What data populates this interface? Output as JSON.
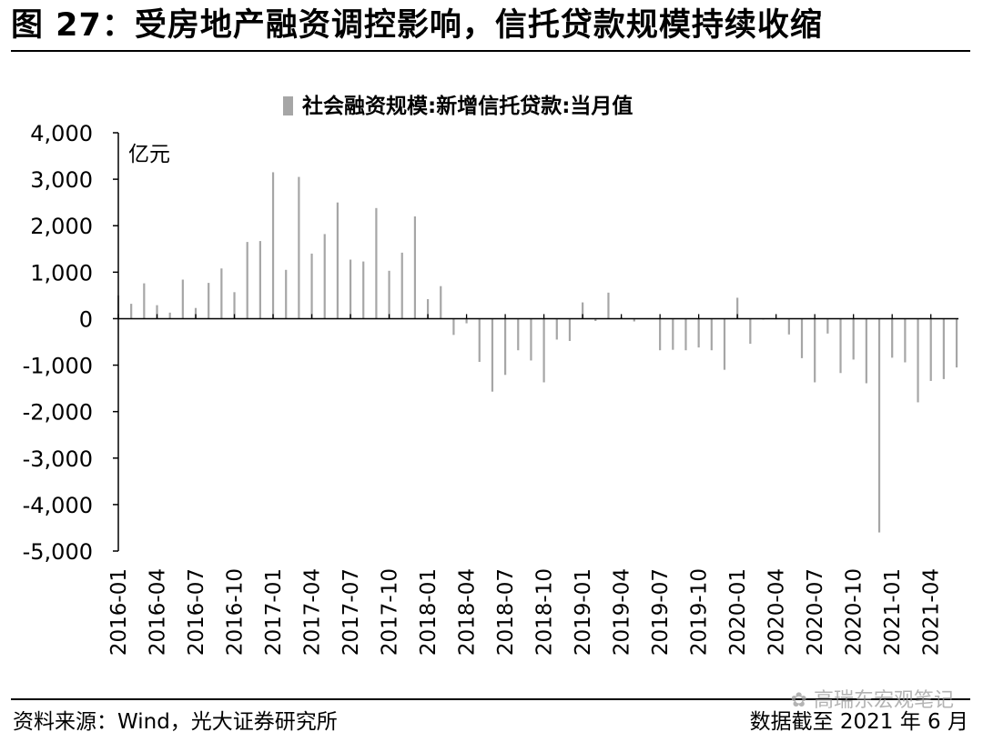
{
  "figure_title": "图 27：受房地产融资调控影响，信托贷款规模持续收缩",
  "source_note": "资料来源：Wind，光大证券研究所",
  "date_note": "数据截至 2021 年 6 月",
  "watermark": "高瑞东宏观笔记",
  "chart_data": {
    "type": "bar",
    "unit_label": "亿元",
    "ylim": [
      -5000,
      4000
    ],
    "yticks": [
      4000,
      3000,
      2000,
      1000,
      0,
      -1000,
      -2000,
      -3000,
      -4000,
      -5000
    ],
    "ytick_labels": [
      "4,000",
      "3,000",
      "2,000",
      "1,000",
      "0",
      "-1,000",
      "-2,000",
      "-3,000",
      "-4,000",
      "-5,000"
    ],
    "bar_color": "#a6a6a6",
    "legend_position": "top-center",
    "categories": [
      "2016-01",
      "2016-02",
      "2016-03",
      "2016-04",
      "2016-05",
      "2016-06",
      "2016-07",
      "2016-08",
      "2016-09",
      "2016-10",
      "2016-11",
      "2016-12",
      "2017-01",
      "2017-02",
      "2017-03",
      "2017-04",
      "2017-05",
      "2017-06",
      "2017-07",
      "2017-08",
      "2017-09",
      "2017-10",
      "2017-11",
      "2017-12",
      "2018-01",
      "2018-02",
      "2018-03",
      "2018-04",
      "2018-05",
      "2018-06",
      "2018-07",
      "2018-08",
      "2018-09",
      "2018-10",
      "2018-11",
      "2018-12",
      "2019-01",
      "2019-02",
      "2019-03",
      "2019-04",
      "2019-05",
      "2019-06",
      "2019-07",
      "2019-08",
      "2019-09",
      "2019-10",
      "2019-11",
      "2019-12",
      "2020-01",
      "2020-02",
      "2020-03",
      "2020-04",
      "2020-05",
      "2020-06",
      "2020-07",
      "2020-08",
      "2020-09",
      "2020-10",
      "2020-11",
      "2020-12",
      "2021-01",
      "2021-02",
      "2021-03",
      "2021-04",
      "2021-05",
      "2021-06"
    ],
    "xtick_labels": [
      "2016-01",
      "2016-04",
      "2016-07",
      "2016-10",
      "2017-01",
      "2017-04",
      "2017-07",
      "2017-10",
      "2018-01",
      "2018-04",
      "2018-07",
      "2018-10",
      "2019-01",
      "2019-04",
      "2019-07",
      "2019-10",
      "2020-01",
      "2020-04",
      "2020-07",
      "2020-10",
      "2021-01",
      "2021-04"
    ],
    "series": [
      {
        "name": "社会融资规模:新增信托贷款:当月值",
        "values": [
          500,
          320,
          760,
          290,
          130,
          840,
          230,
          770,
          1080,
          570,
          1650,
          1670,
          3150,
          1050,
          3050,
          1400,
          1820,
          2500,
          1270,
          1230,
          2380,
          1030,
          1420,
          2200,
          420,
          700,
          -350,
          -100,
          -930,
          -1570,
          -1210,
          -680,
          -900,
          -1370,
          -450,
          -480,
          350,
          -50,
          560,
          30,
          -60,
          0,
          -680,
          -670,
          -680,
          -620,
          -680,
          -1100,
          450,
          -540,
          -20,
          -15,
          -340,
          -850,
          -1370,
          -320,
          -1170,
          -880,
          -1390,
          -4600,
          -840,
          -940,
          -1800,
          -1340,
          -1300,
          -1050
        ]
      }
    ]
  }
}
